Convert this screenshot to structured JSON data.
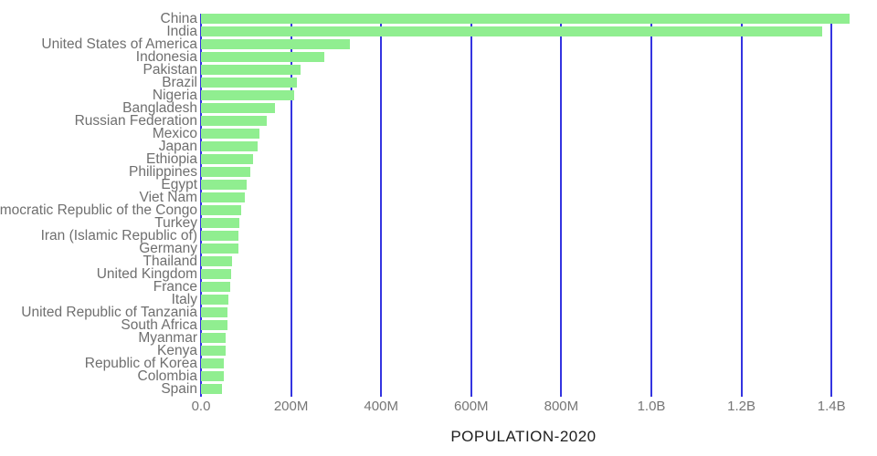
{
  "chart_data": {
    "type": "bar",
    "orientation": "horizontal",
    "title": "",
    "xlabel": "POPULATION-2020",
    "ylabel": "",
    "grid": true,
    "legend": false,
    "xlim_millions": [
      0,
      1460
    ],
    "x_ticks": [
      {
        "label": "0.0",
        "value_millions": 0
      },
      {
        "label": "200M",
        "value_millions": 200
      },
      {
        "label": "400M",
        "value_millions": 400
      },
      {
        "label": "600M",
        "value_millions": 600
      },
      {
        "label": "800M",
        "value_millions": 800
      },
      {
        "label": "1.0B",
        "value_millions": 1000
      },
      {
        "label": "1.2B",
        "value_millions": 1200
      },
      {
        "label": "1.4B",
        "value_millions": 1400
      }
    ],
    "categories": [
      "China",
      "India",
      "United States of America",
      "Indonesia",
      "Pakistan",
      "Brazil",
      "Nigeria",
      "Bangladesh",
      "Russian Federation",
      "Mexico",
      "Japan",
      "Ethiopia",
      "Philippines",
      "Egypt",
      "Viet Nam",
      "Democratic Republic of the Congo",
      "Turkey",
      "Iran (Islamic Republic of)",
      "Germany",
      "Thailand",
      "United Kingdom",
      "France",
      "Italy",
      "United Republic of Tanzania",
      "South Africa",
      "Myanmar",
      "Kenya",
      "Republic of Korea",
      "Colombia",
      "Spain"
    ],
    "values_millions": [
      1439.3,
      1380.0,
      331.0,
      273.5,
      220.9,
      212.6,
      206.1,
      164.7,
      145.9,
      128.9,
      126.5,
      115.0,
      109.6,
      102.3,
      97.3,
      89.6,
      84.3,
      84.0,
      83.8,
      69.8,
      67.9,
      65.3,
      60.5,
      59.7,
      59.3,
      54.4,
      53.8,
      51.3,
      50.9,
      46.8
    ],
    "colors": {
      "bar": "#90EE90",
      "gridline": "#3434E0",
      "category_label": "#6F6F6F",
      "tick_label": "#767676",
      "axis_title": "#1E1E1E",
      "background": "#FFFFFF"
    }
  }
}
